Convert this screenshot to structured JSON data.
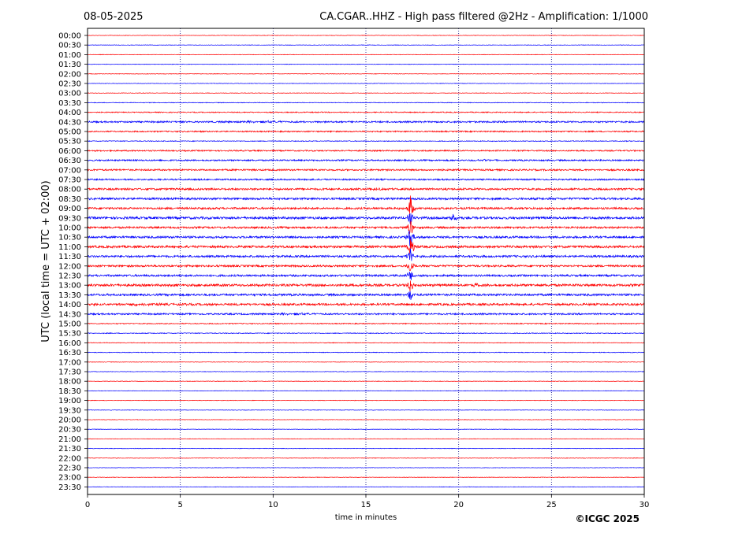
{
  "header": {
    "date": "08-05-2025",
    "title": "CA.CGAR..HHZ - High pass filtered @2Hz - Amplification: 1/1000"
  },
  "footer": {
    "copyright": "©ICGC 2025"
  },
  "colors": {
    "red": "#ff0000",
    "blue": "#0000ff",
    "axis": "#000000",
    "grid": "#000080"
  },
  "chart_data": {
    "type": "line",
    "title": "CA.CGAR..HHZ - High pass filtered @2Hz - Amplification: 1/1000",
    "xlabel": "time in minutes",
    "ylabel": "UTC (local time = UTC + 02:00)",
    "xlim": [
      0,
      30
    ],
    "x_ticks": [
      0,
      5,
      10,
      15,
      20,
      25,
      30
    ],
    "vertical_grid_minutes": [
      5,
      10,
      15,
      20,
      25
    ],
    "trace_color_pattern": [
      "red",
      "blue"
    ],
    "rows": [
      "00:00",
      "00:30",
      "01:00",
      "01:30",
      "02:00",
      "02:30",
      "03:00",
      "03:30",
      "04:00",
      "04:30",
      "05:00",
      "05:30",
      "06:00",
      "06:30",
      "07:00",
      "07:30",
      "08:00",
      "08:30",
      "09:00",
      "09:30",
      "10:00",
      "10:30",
      "11:00",
      "11:30",
      "12:00",
      "12:30",
      "13:00",
      "13:30",
      "14:00",
      "14:30",
      "15:00",
      "15:30",
      "16:00",
      "16:30",
      "17:00",
      "17:30",
      "18:00",
      "18:30",
      "19:00",
      "19:30",
      "20:00",
      "20:30",
      "21:00",
      "21:30",
      "22:00",
      "22:30",
      "23:00",
      "23:30"
    ],
    "noise_level": [
      0.3,
      0.3,
      0.3,
      0.3,
      0.3,
      0.3,
      0.3,
      0.4,
      0.6,
      1.0,
      0.8,
      0.5,
      0.8,
      0.9,
      1.0,
      0.9,
      1.2,
      1.3,
      1.2,
      1.5,
      1.2,
      1.3,
      1.4,
      1.3,
      1.2,
      1.2,
      1.5,
      1.3,
      1.3,
      1.0,
      0.6,
      0.5,
      0.4,
      0.4,
      0.3,
      0.3,
      0.3,
      0.3,
      0.3,
      0.3,
      0.3,
      0.3,
      0.3,
      0.3,
      0.3,
      0.3,
      0.3,
      0.3
    ],
    "events": [
      {
        "row": "09:00",
        "minute": 17.4,
        "amplitude": 18,
        "width": 0.1
      },
      {
        "row": "09:30",
        "minute": 17.4,
        "amplitude": 10,
        "width": 0.1
      },
      {
        "row": "10:00",
        "minute": 17.4,
        "amplitude": 14,
        "width": 0.1
      },
      {
        "row": "10:30",
        "minute": 17.4,
        "amplitude": 18,
        "width": 0.1
      },
      {
        "row": "11:00",
        "minute": 17.4,
        "amplitude": 14,
        "width": 0.15
      },
      {
        "row": "11:30",
        "minute": 17.4,
        "amplitude": 12,
        "width": 0.1
      },
      {
        "row": "12:00",
        "minute": 17.4,
        "amplitude": 14,
        "width": 0.1
      },
      {
        "row": "12:30",
        "minute": 17.4,
        "amplitude": 10,
        "width": 0.1
      },
      {
        "row": "13:00",
        "minute": 17.4,
        "amplitude": 12,
        "width": 0.1
      },
      {
        "row": "13:30",
        "minute": 17.4,
        "amplitude": 10,
        "width": 0.1
      },
      {
        "row": "09:30",
        "minute": 19.7,
        "amplitude": 4,
        "width": 0.25
      },
      {
        "row": "13:00",
        "minute": 20.9,
        "amplitude": 3,
        "width": 0.2
      },
      {
        "row": "06:30",
        "minute": 21.4,
        "amplitude": 1.5,
        "width": 0.3
      },
      {
        "row": "08:00",
        "minute": 15.8,
        "amplitude": 1.5,
        "width": 0.4
      },
      {
        "row": "14:00",
        "minute": 2.5,
        "amplitude": 1.5,
        "width": 1.0
      },
      {
        "row": "04:30",
        "minute": 9.5,
        "amplitude": 1.0,
        "width": 1.5
      },
      {
        "row": "14:30",
        "minute": 11.2,
        "amplitude": 1.2,
        "width": 0.8
      }
    ]
  }
}
